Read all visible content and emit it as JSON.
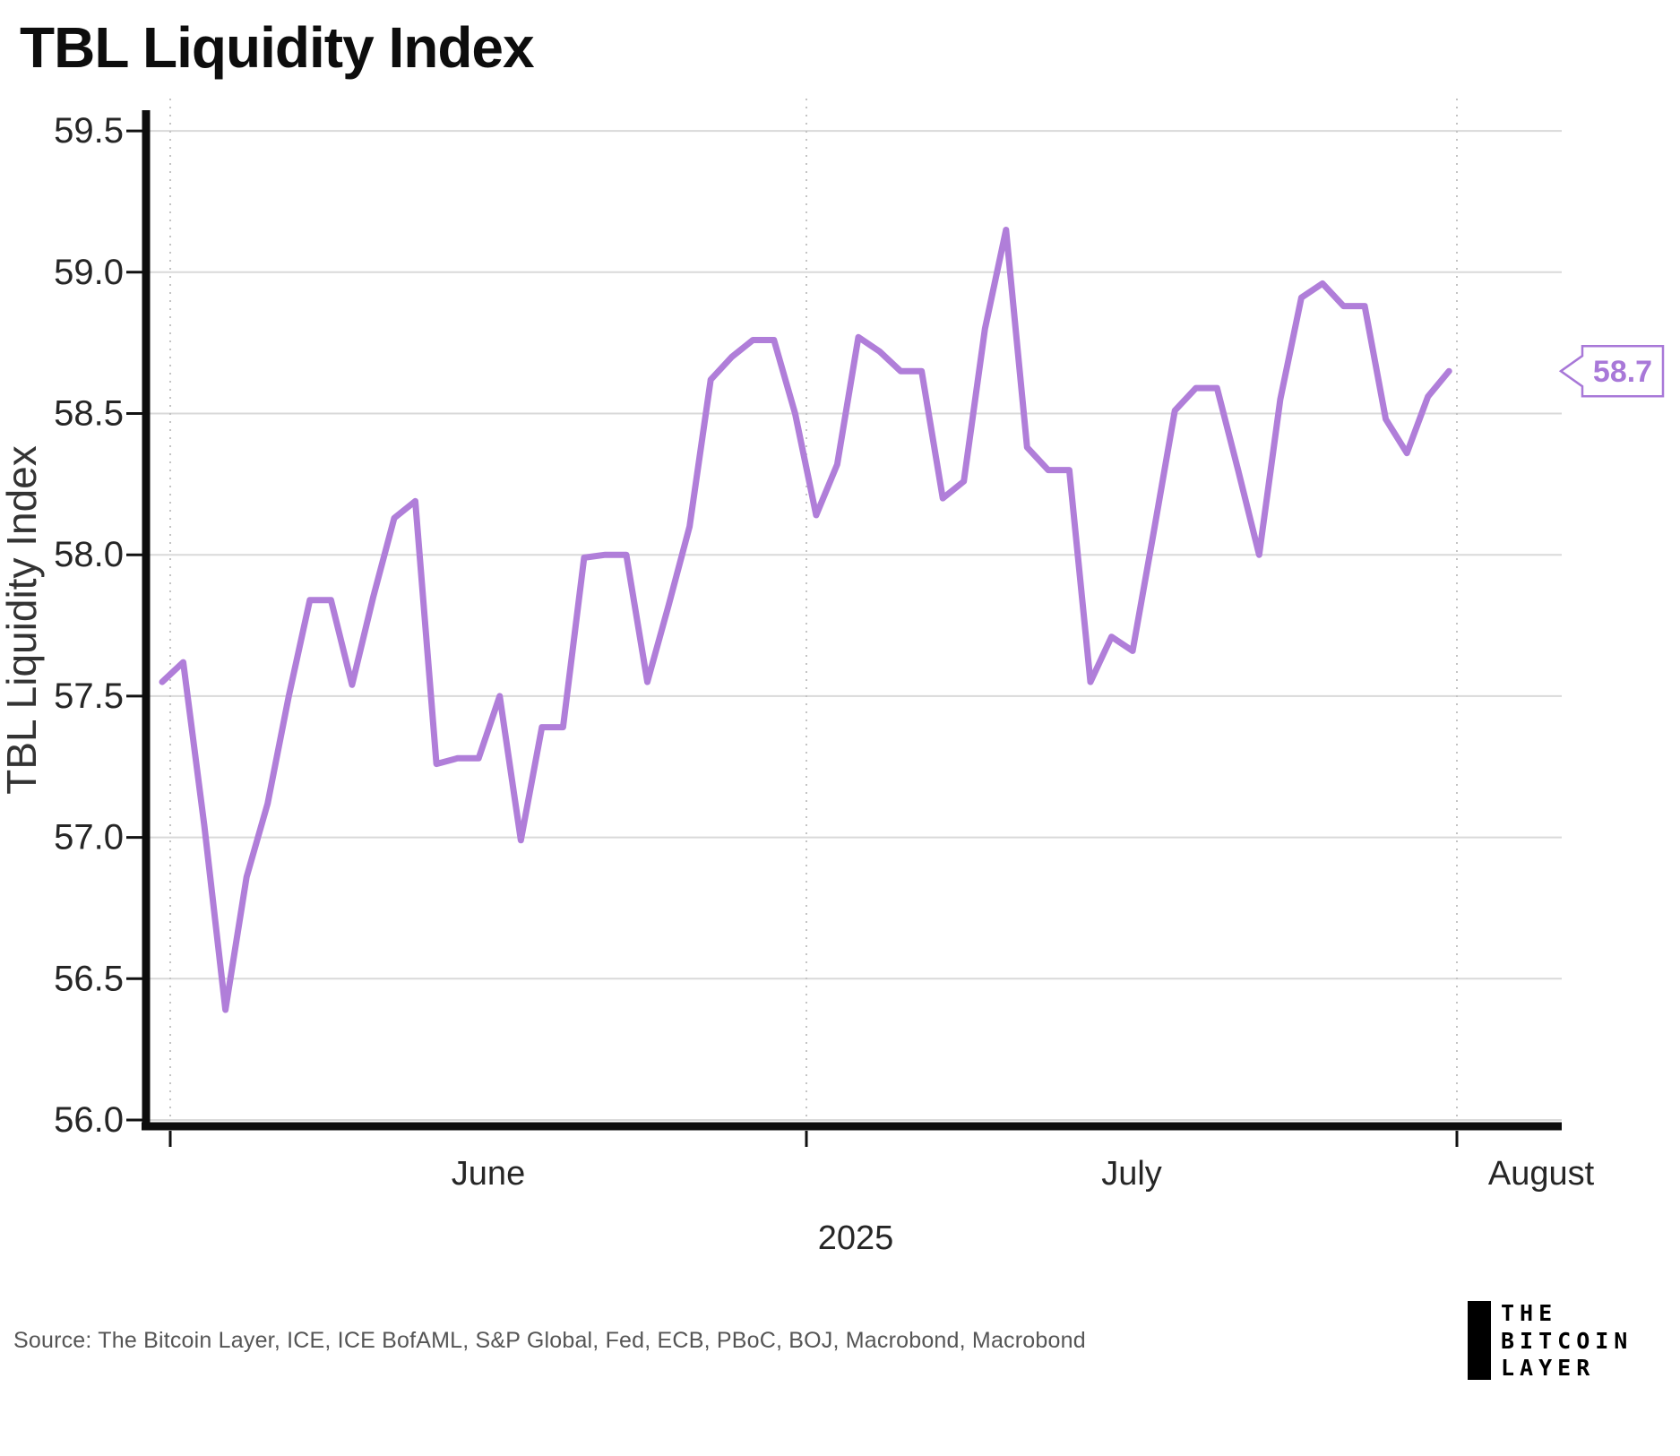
{
  "title": "TBL Liquidity Index",
  "source": "Source: The Bitcoin Layer, ICE, ICE BofAML, S&P Global, Fed, ECB, PBoC, BOJ, Macrobond, Macrobond",
  "logo": {
    "line1": "THE",
    "line2": "BITCOIN",
    "line3": "LAYER"
  },
  "chart_data": {
    "type": "line",
    "title": "TBL Liquidity Index",
    "ylabel": "TBL Liquidity Index",
    "xlabel": "2025",
    "x_start": "2025-05-31",
    "x_end": "2025-07-31",
    "x_frequency": "daily",
    "month_tick_labels": [
      "June",
      "July",
      "August"
    ],
    "year_label": "2025",
    "yticks": [
      56.0,
      56.5,
      57.0,
      57.5,
      58.0,
      58.5,
      59.0,
      59.5
    ],
    "ylim": [
      55.95,
      59.6
    ],
    "grid": {
      "horizontal": "solid light gray",
      "vertical": "dotted at month boundaries"
    },
    "legend_position": "none",
    "line_color": "#b07ed9",
    "annotation_color": "#a878d8",
    "last_value_label": "58.7",
    "series": [
      {
        "name": "TBL Liquidity Index",
        "values": [
          57.55,
          57.62,
          57.04,
          56.39,
          56.86,
          57.12,
          57.5,
          57.84,
          57.84,
          57.54,
          57.85,
          58.13,
          58.19,
          57.26,
          57.28,
          57.28,
          57.5,
          56.99,
          57.39,
          57.39,
          57.99,
          58.0,
          58.0,
          57.55,
          57.82,
          58.1,
          58.62,
          58.7,
          58.76,
          58.76,
          58.5,
          58.14,
          58.32,
          58.77,
          58.72,
          58.65,
          58.65,
          58.2,
          58.26,
          58.8,
          59.15,
          58.38,
          58.3,
          58.3,
          57.55,
          57.71,
          57.66,
          58.08,
          58.51,
          58.59,
          58.59,
          58.3,
          58.0,
          58.55,
          58.91,
          58.96,
          58.88,
          58.88,
          58.48,
          58.36,
          58.56,
          58.65
        ]
      }
    ]
  }
}
